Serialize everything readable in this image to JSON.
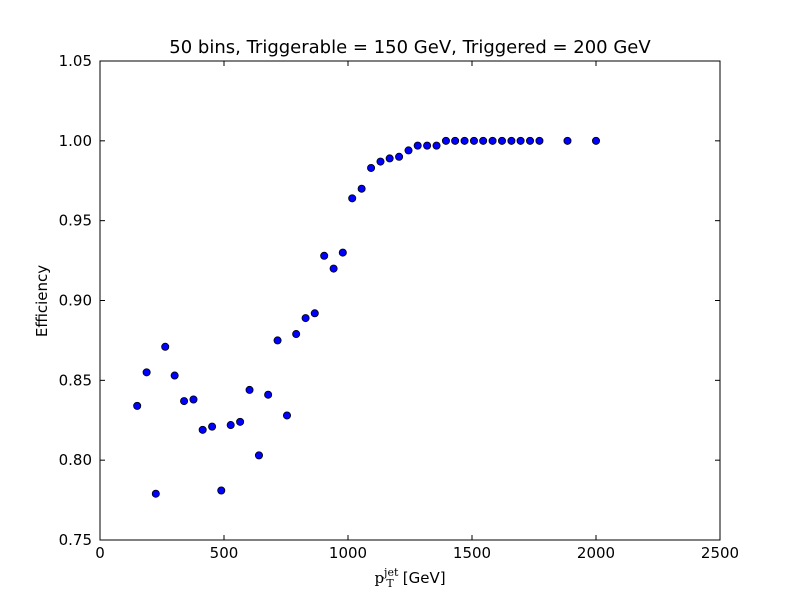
{
  "chart_data": {
    "type": "scatter",
    "title": "50 bins, Triggerable = 150 GeV, Triggered = 200 GeV",
    "xlabel": {
      "main": "p",
      "subscript": "T",
      "superscript": "jet",
      "unit": "[GeV]"
    },
    "ylabel": "Efficiency",
    "xlim": [
      0,
      2500
    ],
    "ylim": [
      0.75,
      1.05
    ],
    "xticks": [
      0,
      500,
      1000,
      1500,
      2000,
      2500
    ],
    "xtick_labels": [
      "0",
      "500",
      "1000",
      "1500",
      "2000",
      "2500"
    ],
    "yticks": [
      0.75,
      0.8,
      0.85,
      0.9,
      0.95,
      1.0,
      1.05
    ],
    "ytick_labels": [
      "0.75",
      "0.80",
      "0.85",
      "0.90",
      "0.95",
      "1.00",
      "1.05"
    ],
    "grid": false,
    "marker_color": "#0000ff",
    "marker_edge_color": "#000000",
    "series": [
      {
        "x": [
          150,
          188,
          225,
          263,
          301,
          339,
          377,
          414,
          452,
          489,
          527,
          565,
          603,
          641,
          678,
          716,
          754,
          791,
          829,
          866,
          904,
          942,
          979,
          1017,
          1055,
          1093,
          1131,
          1168,
          1206,
          1244,
          1281,
          1319,
          1357,
          1395,
          1432,
          1470,
          1508,
          1545,
          1583,
          1621,
          1659,
          1696,
          1734,
          1772,
          1885,
          2000
        ],
        "y": [
          0.834,
          0.855,
          0.779,
          0.871,
          0.853,
          0.837,
          0.838,
          0.819,
          0.821,
          0.781,
          0.822,
          0.824,
          0.844,
          0.803,
          0.841,
          0.875,
          0.828,
          0.879,
          0.889,
          0.892,
          0.928,
          0.92,
          0.93,
          0.964,
          0.97,
          0.983,
          0.987,
          0.989,
          0.99,
          0.994,
          0.997,
          0.997,
          0.997,
          1.0,
          1.0,
          1.0,
          1.0,
          1.0,
          1.0,
          1.0,
          1.0,
          1.0,
          1.0,
          1.0,
          1.0,
          1.0
        ]
      }
    ]
  }
}
